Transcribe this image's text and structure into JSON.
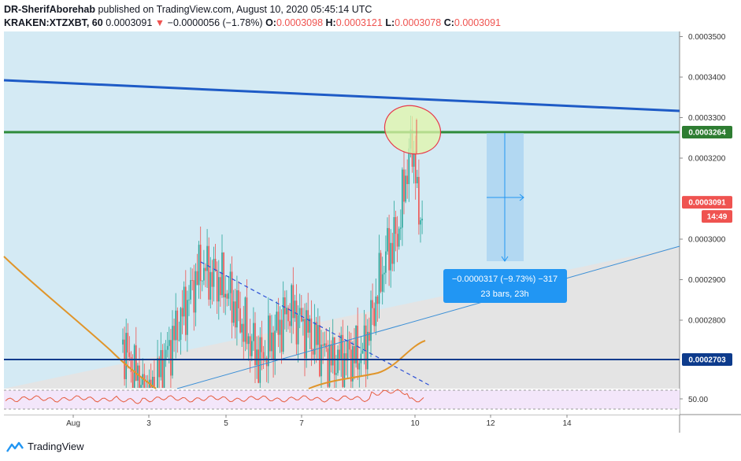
{
  "header": {
    "author": "DR-SherifAborehab",
    "published_text": "published on TradingView.com, August 10, 2020 05:45:14 UTC",
    "symbol": "KRAKEN:XTZXBT, 60",
    "last": "0.0003091",
    "change": "−0.0000056 (−1.78%)",
    "o_label": "O:",
    "o": "0.0003098",
    "h_label": "H:",
    "h": "0.0003121",
    "l_label": "L:",
    "l": "0.0003078",
    "c_label": "C:",
    "c": "0.0003091"
  },
  "price_axis": {
    "ticks": [
      "0.0003500",
      "0.0003400",
      "0.0003300",
      "0.0003200",
      "0.0003000",
      "0.0002900",
      "0.0002800"
    ],
    "tick_values": [
      0.00035,
      0.00034,
      0.00033,
      0.00032,
      0.0003,
      0.00029,
      0.00028
    ],
    "labels": [
      {
        "text": "0.0003264",
        "value": 0.0003264,
        "color": "#2e7d32"
      },
      {
        "text": "0.0003091",
        "value": 0.0003091,
        "color": "#ef5350"
      },
      {
        "text": "14:49",
        "color": "#ef5350"
      },
      {
        "text": "0.0002703",
        "value": 0.0002703,
        "color": "#0d3b8c"
      }
    ]
  },
  "time_axis": {
    "ticks": [
      "Aug",
      "3",
      "5",
      "7",
      "10",
      "12",
      "14"
    ]
  },
  "measure": {
    "line1": "−0.0000317 (−9.73%) −317",
    "line2": "23 bars, 23h"
  },
  "rsi": {
    "tick": "50.00"
  },
  "levels": {
    "resistance": 0.0003264,
    "support": 0.0002703
  },
  "colors": {
    "channel_fill": "#d4eaf4",
    "up_candle": "#26a69a",
    "down_candle": "#ef5350",
    "resistance": "#2e8b3a",
    "support": "#0d3b8c",
    "trend_top": "#1e5bc6",
    "ma": "#e0952a",
    "rsi_fill": "#f3e6fa",
    "measure": "#2196f3"
  },
  "footer": {
    "brand": "TradingView"
  }
}
